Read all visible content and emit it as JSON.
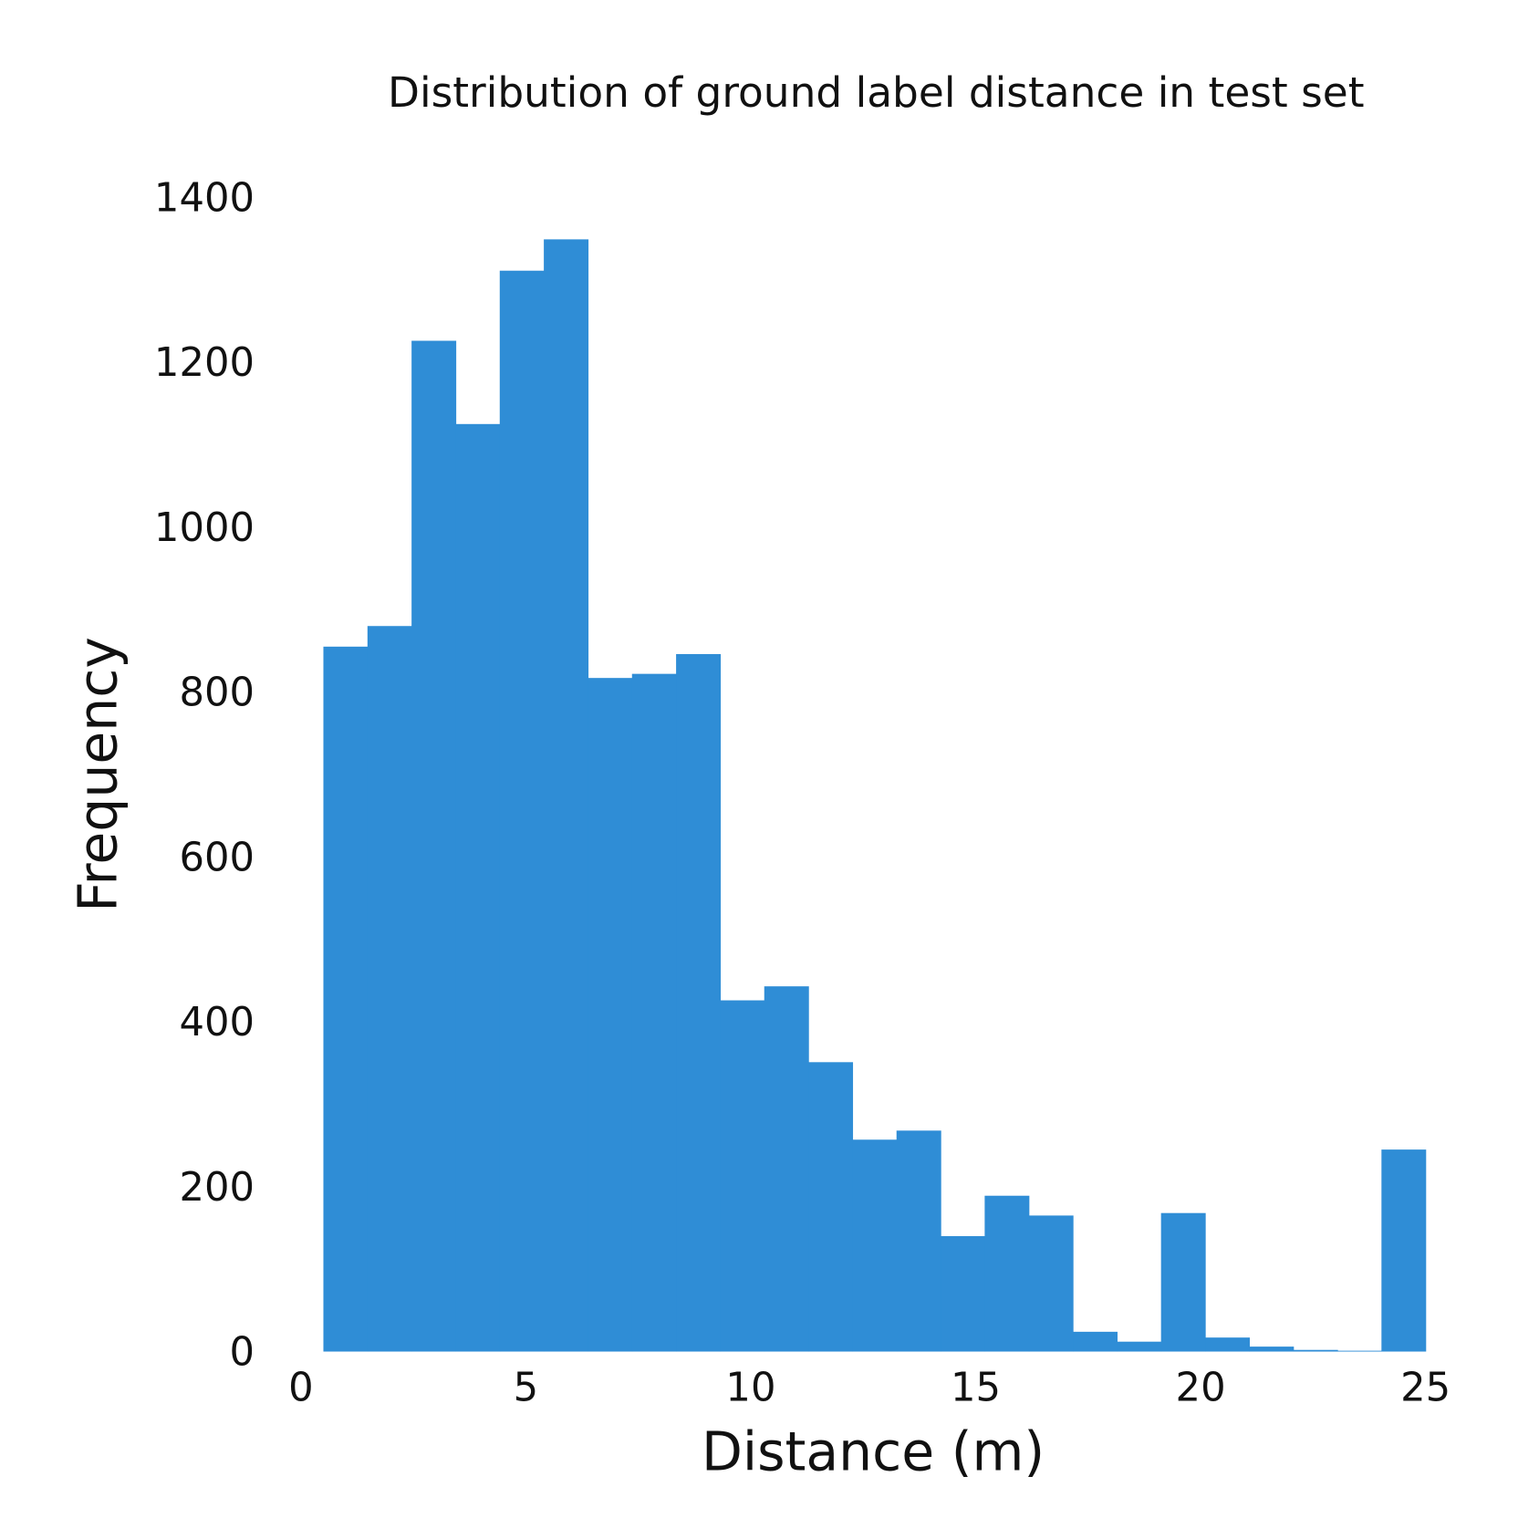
{
  "chart_data": {
    "type": "bar",
    "title": "Distribution of ground label distance in test set",
    "xlabel": "Distance (m)",
    "ylabel": "Frequency",
    "xlim": [
      0,
      25
    ],
    "ylim": [
      0,
      1400
    ],
    "grid": false,
    "color": "#2f8dd6",
    "bin_start": 0.5,
    "bin_width": 0.98,
    "values": [
      855,
      880,
      1226,
      1125,
      1311,
      1349,
      817,
      822,
      846,
      426,
      443,
      351,
      257,
      268,
      140,
      189,
      165,
      24,
      12,
      168,
      17,
      6,
      2,
      1,
      245
    ],
    "xticks": [
      "0",
      "5",
      "10",
      "15",
      "20",
      "25"
    ],
    "yticks": [
      "0",
      "200",
      "400",
      "600",
      "800",
      "1000",
      "1200",
      "1400"
    ]
  }
}
